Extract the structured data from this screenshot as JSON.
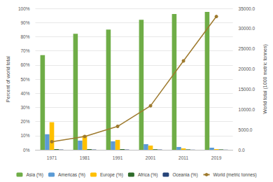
{
  "chart_data": {
    "type": "bar",
    "categories": [
      "1971",
      "1981",
      "1991",
      "2001",
      "2011",
      "2019"
    ],
    "ylabel": "Percent of world total",
    "y2label": "World total (1000 metric tonnes)",
    "ylim": [
      0,
      100
    ],
    "yticks": [
      {
        "value": 0,
        "label": "0%"
      },
      {
        "value": 10,
        "label": "10%"
      },
      {
        "value": 20,
        "label": "20%"
      },
      {
        "value": 30,
        "label": "30%"
      },
      {
        "value": 40,
        "label": "40%"
      },
      {
        "value": 50,
        "label": "50%"
      },
      {
        "value": 60,
        "label": "60%"
      },
      {
        "value": 70,
        "label": "70%"
      },
      {
        "value": 80,
        "label": "80%"
      },
      {
        "value": 90,
        "label": "90%"
      },
      {
        "value": 100,
        "label": "100%"
      }
    ],
    "y2lim": [
      0,
      35000
    ],
    "y2ticks": [
      {
        "value": 0,
        "label": "0.0"
      },
      {
        "value": 5000,
        "label": "5000.0"
      },
      {
        "value": 10000,
        "label": "10000.0"
      },
      {
        "value": 15000,
        "label": "15000.0"
      },
      {
        "value": 20000,
        "label": "20000.0"
      },
      {
        "value": 25000,
        "label": "25000.0"
      },
      {
        "value": 30000,
        "label": "30000.0"
      },
      {
        "value": 35000,
        "label": "35000.0"
      }
    ],
    "grid": true,
    "legend": "bottom",
    "series": [
      {
        "name": "Asia (%)",
        "type": "bar",
        "color": "#6fad47",
        "values": [
          67,
          82,
          85,
          92,
          96,
          97.5
        ]
      },
      {
        "name": "Americas (%)",
        "type": "bar",
        "color": "#5b9bd5",
        "values": [
          11,
          6.5,
          6,
          4,
          2,
          1.5
        ]
      },
      {
        "name": "Europe (%)",
        "type": "bar",
        "color": "#ffc000",
        "values": [
          19.5,
          10,
          7,
          3,
          1,
          0.5
        ]
      },
      {
        "name": "Africa (%)",
        "type": "bar",
        "color": "#2e6b2a",
        "values": [
          0.5,
          0.5,
          0.5,
          0.4,
          0.3,
          0.3
        ]
      },
      {
        "name": "Oceania (%)",
        "type": "bar",
        "color": "#264478",
        "values": [
          0.2,
          0.2,
          0.2,
          0.2,
          0.1,
          0.1
        ]
      },
      {
        "name": "World (metric tonnes)",
        "type": "line",
        "axis": "y2",
        "color": "#9e7a2e",
        "marker": "circle",
        "values": [
          2000,
          3300,
          5800,
          10900,
          22000,
          33000
        ]
      }
    ]
  }
}
